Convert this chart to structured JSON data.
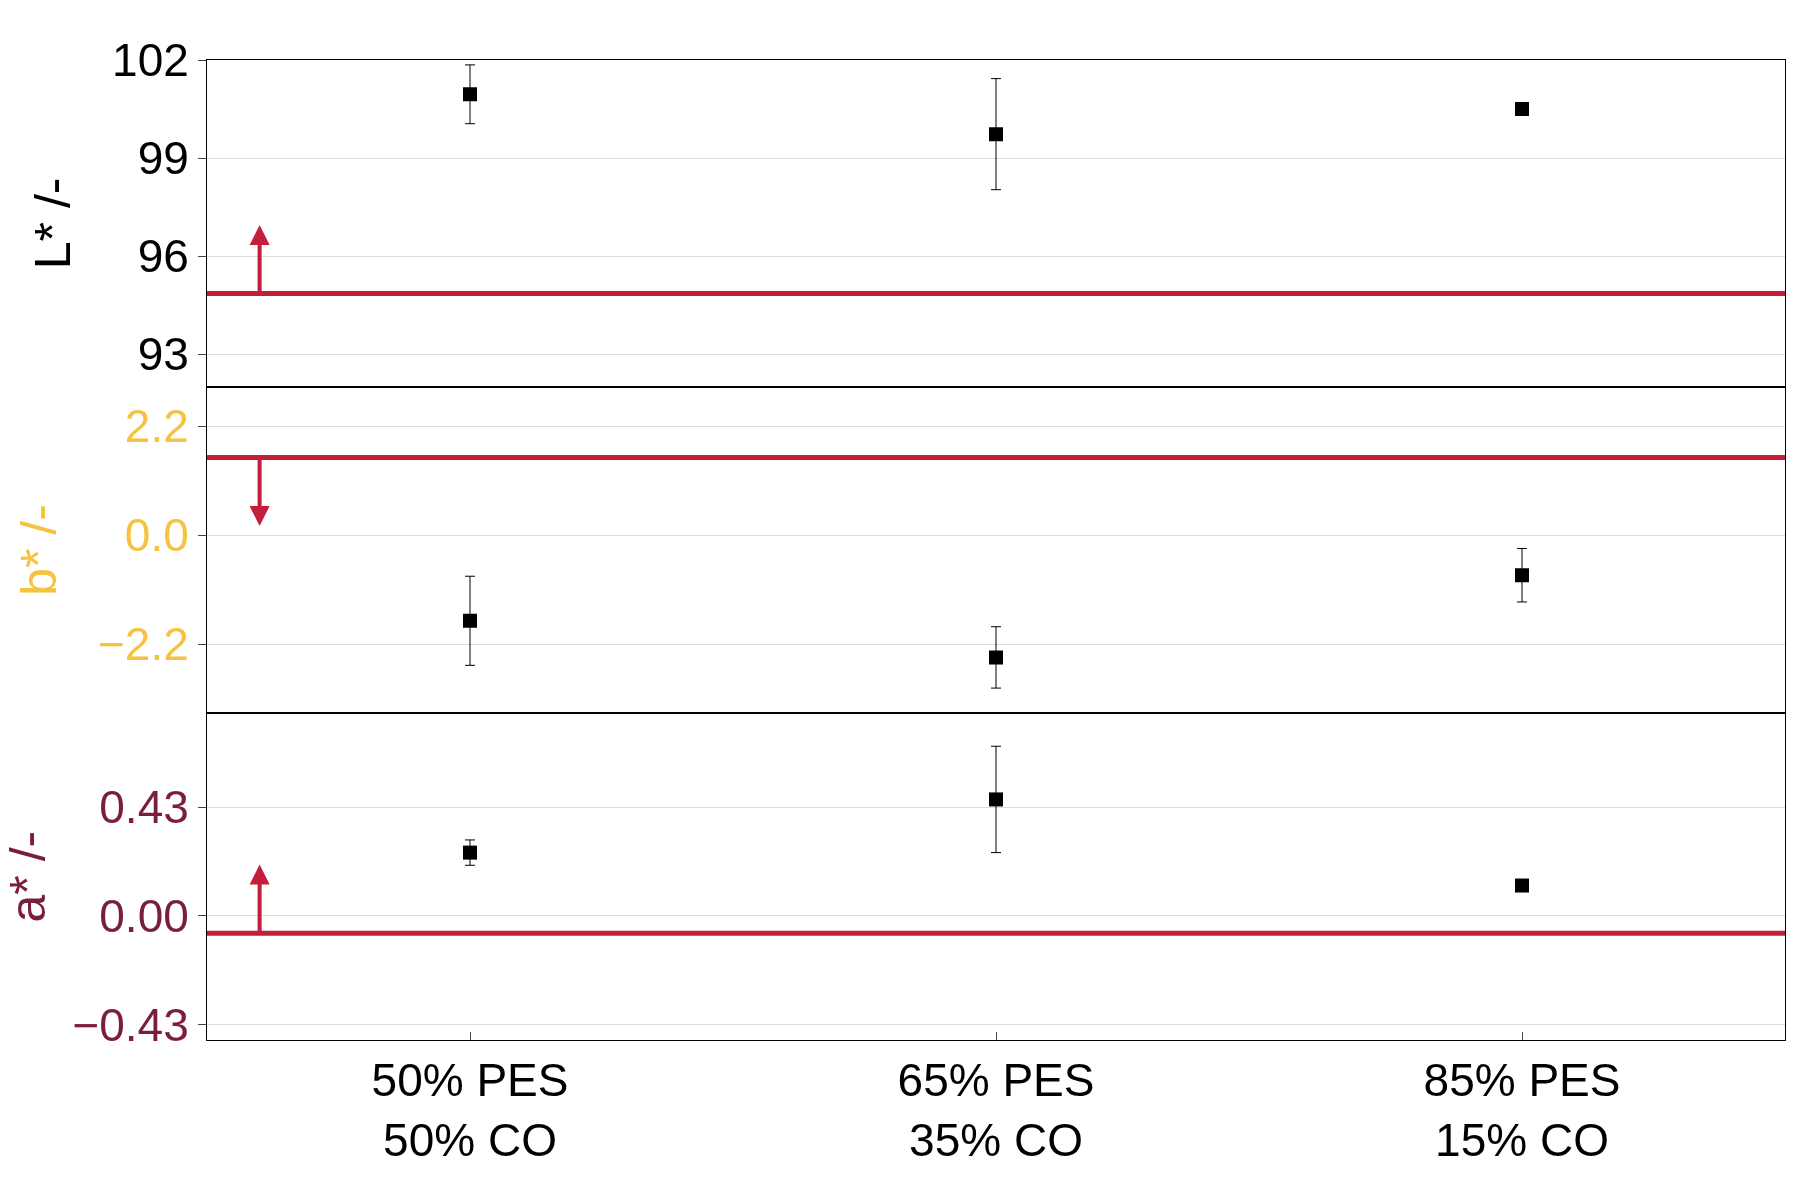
{
  "chart_data": [
    {
      "type": "scatter",
      "ylabel": "L* /-",
      "marker": "square",
      "grid": "y",
      "tick_labels": "y",
      "series": [
        {
          "color": "#000000",
          "values": [
            100.95,
            99.73,
            100.5
          ],
          "errors": [
            0.9,
            1.7,
            null
          ]
        }
      ],
      "ylim": [
        92,
        102
      ],
      "yticks": [
        93,
        96,
        99,
        102
      ],
      "ref_lines": [
        {
          "axis": "y",
          "value": 94.85,
          "color": "#c41e3a"
        }
      ]
    },
    {
      "type": "scatter",
      "ylabel": "b* /-",
      "marker": "square",
      "grid": "y",
      "tick_labels": "y",
      "series": [
        {
          "color": "#000000",
          "values": [
            -1.73,
            -2.47,
            -0.81
          ],
          "errors": [
            0.9,
            0.62,
            0.54
          ]
        }
      ],
      "ylim": [
        -3.6,
        3.0
      ],
      "yticks": [
        {
          "value": -2.2,
          "label": "−2.2"
        },
        {
          "value": 0,
          "label": "0.0"
        },
        2.2
      ],
      "ref_lines": [
        {
          "axis": "y",
          "value": 1.57,
          "color": "#c41e3a"
        }
      ]
    },
    {
      "type": "scatter",
      "categories": [
        "50% PES\n50% CO",
        "65% PES\n35% CO",
        "85% PES\n15% CO"
      ],
      "ylabel": "a* /-",
      "marker": "square",
      "grid": "y",
      "series": [
        {
          "color": "#000000",
          "values": [
            0.25,
            0.46,
            0.12
          ],
          "errors": [
            0.05,
            0.21,
            0.01
          ]
        }
      ],
      "ylim": [
        -0.49,
        0.8
      ],
      "yticks": [
        {
          "value": -0.43,
          "label": "−0.43"
        },
        {
          "value": 0,
          "label": "0.00"
        },
        0.43
      ],
      "ref_lines": [
        {
          "axis": "y",
          "value": -0.068,
          "color": "#c41e3a"
        }
      ]
    }
  ]
}
